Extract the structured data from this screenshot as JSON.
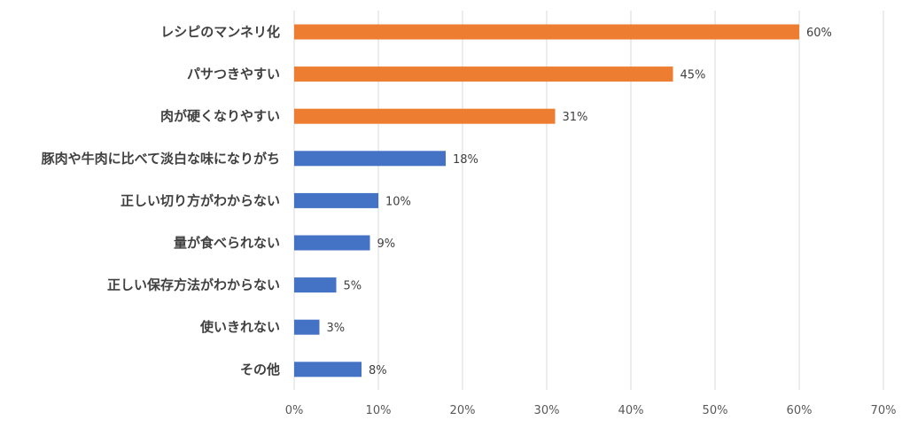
{
  "chart_data": {
    "type": "bar",
    "orientation": "horizontal",
    "categories": [
      "レシピのマンネリ化",
      "パサつきやすい",
      "肉が硬くなりやすい",
      "豚肉や牛肉に比べて淡白な味になりがち",
      "正しい切り方がわからない",
      "量が食べられない",
      "正しい保存方法がわからない",
      "使いきれない",
      "その他"
    ],
    "values": [
      60,
      45,
      31,
      18,
      10,
      9,
      5,
      3,
      8
    ],
    "value_labels": [
      "60%",
      "45%",
      "31%",
      "18%",
      "10%",
      "9%",
      "5%",
      "3%",
      "8%"
    ],
    "highlighted": [
      true,
      true,
      true,
      false,
      false,
      false,
      false,
      false,
      false
    ],
    "colors": {
      "highlight": "#ED7D31",
      "default": "#4472C4"
    },
    "xlim": [
      0,
      70
    ],
    "x_ticks": [
      0,
      10,
      20,
      30,
      40,
      50,
      60,
      70
    ],
    "x_tick_labels": [
      "0%",
      "10%",
      "20%",
      "30%",
      "40%",
      "50%",
      "60%",
      "70%"
    ],
    "grid": true,
    "legend": false
  }
}
